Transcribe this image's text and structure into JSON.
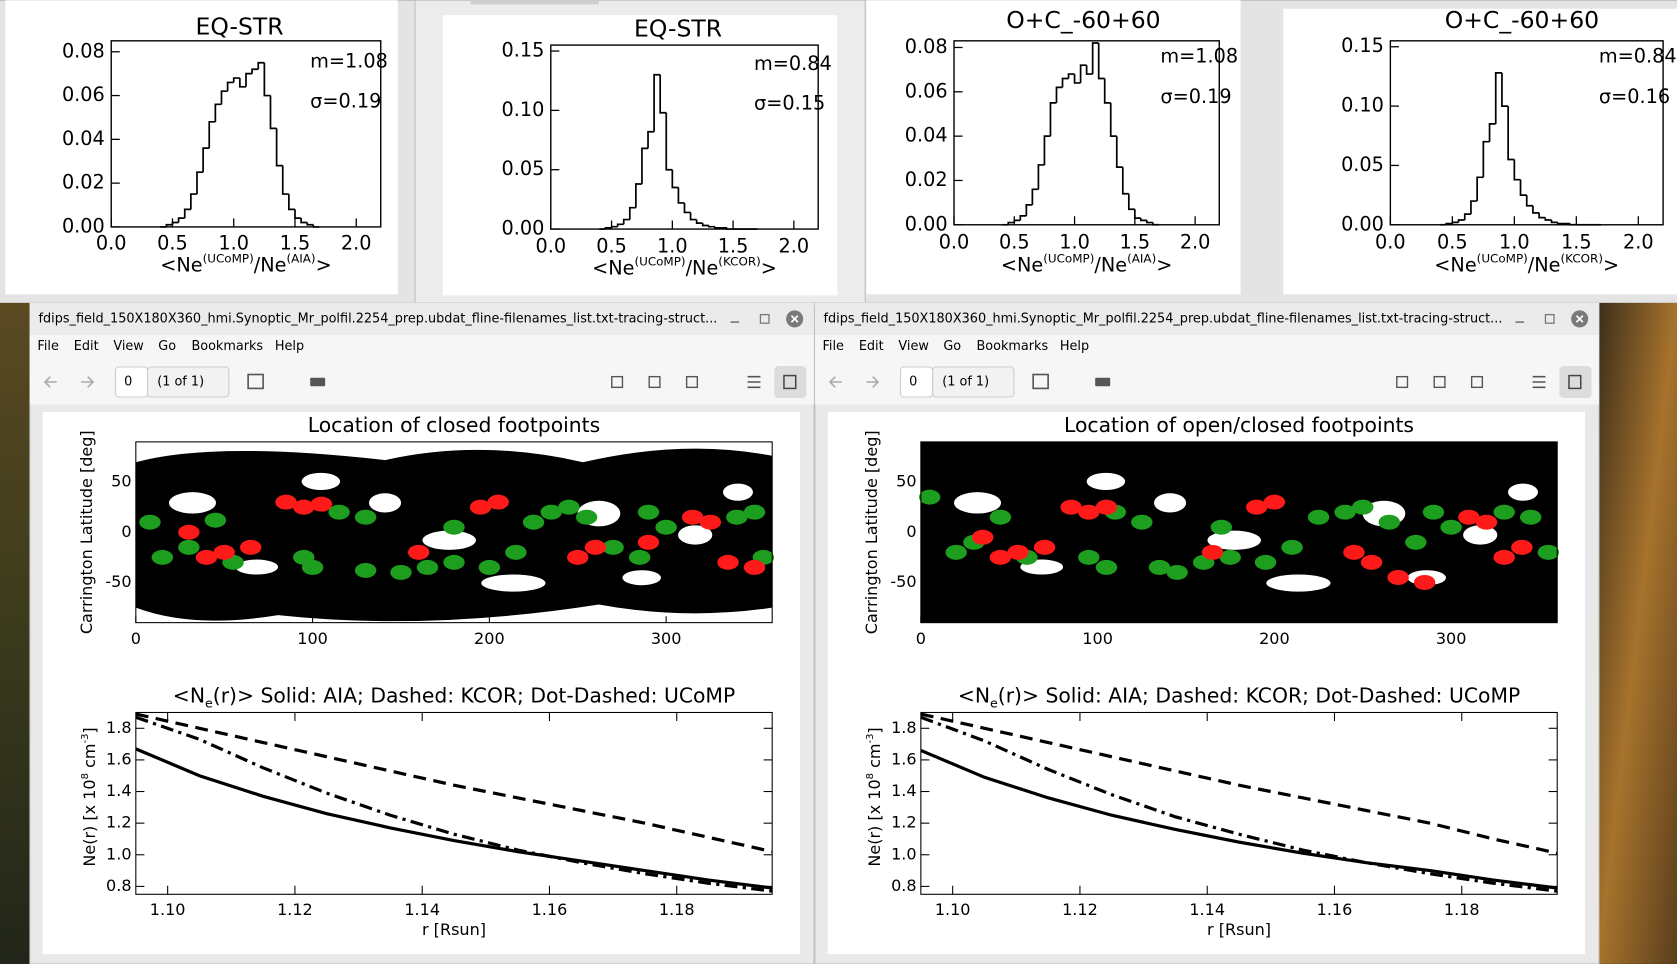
{
  "histograms": [
    {
      "title": "EQ-STR",
      "m_text": "m=1.08",
      "sigma_text": "σ=0.19",
      "xlabel": [
        {
          "text": "<Ne"
        },
        {
          "text": "(UCoMP)",
          "baseline": "super"
        },
        {
          "text": "/Ne"
        },
        {
          "text": "(AIA)",
          "baseline": "super"
        },
        {
          "text": ">"
        }
      ],
      "xlim": [
        0,
        2.2
      ],
      "xticks": [
        {
          "value": 0,
          "label": "0.0"
        },
        0.5,
        {
          "value": 1,
          "label": "1.0"
        },
        1.5,
        {
          "value": 2,
          "label": "2.0"
        }
      ],
      "ylim": [
        0,
        0.085
      ],
      "yticks": [
        {
          "value": 0,
          "label": "0.00"
        },
        {
          "value": 0.02,
          "label": "0.02"
        },
        {
          "value": 0.04,
          "label": "0.04"
        },
        {
          "value": 0.06,
          "label": "0.06"
        },
        {
          "value": 0.08,
          "label": "0.08"
        }
      ],
      "bins": [
        0.4,
        0.45,
        0.5,
        0.55,
        0.6,
        0.65,
        0.7,
        0.75,
        0.8,
        0.85,
        0.9,
        0.95,
        1.0,
        1.05,
        1.1,
        1.15,
        1.2,
        1.25,
        1.3,
        1.35,
        1.4,
        1.45,
        1.5,
        1.55,
        1.6,
        1.65,
        1.7
      ],
      "counts": [
        0,
        0.001,
        0.002,
        0.004,
        0.008,
        0.015,
        0.025,
        0.036,
        0.048,
        0.056,
        0.062,
        0.066,
        0.068,
        0.064,
        0.07,
        0.072,
        0.075,
        0.06,
        0.045,
        0.028,
        0.015,
        0.008,
        0.004,
        0.002,
        0.001,
        0
      ]
    },
    {
      "title": "EQ-STR",
      "m_text": "m=0.84",
      "sigma_text": "σ=0.15",
      "xlabel": [
        {
          "text": "<Ne"
        },
        {
          "text": "(UCoMP)",
          "baseline": "super"
        },
        {
          "text": "/Ne"
        },
        {
          "text": "(KCOR)",
          "baseline": "super"
        },
        {
          "text": ">"
        }
      ],
      "xlim": [
        0,
        2.2
      ],
      "xticks": [
        {
          "value": 0,
          "label": "0.0"
        },
        0.5,
        {
          "value": 1,
          "label": "1.0"
        },
        1.5,
        {
          "value": 2,
          "label": "2.0"
        }
      ],
      "ylim": [
        0,
        0.155
      ],
      "yticks": [
        {
          "value": 0,
          "label": "0.00"
        },
        0.05,
        {
          "value": 0.1,
          "label": "0.10"
        },
        0.15
      ],
      "bins": [
        0.4,
        0.45,
        0.5,
        0.55,
        0.6,
        0.65,
        0.7,
        0.75,
        0.8,
        0.85,
        0.9,
        0.95,
        1.0,
        1.05,
        1.1,
        1.15,
        1.2,
        1.25,
        1.3,
        1.35,
        1.4,
        1.45,
        1.5,
        1.55,
        1.6,
        1.65,
        1.7
      ],
      "counts": [
        0,
        0.001,
        0.002,
        0.004,
        0.008,
        0.018,
        0.038,
        0.068,
        0.082,
        0.13,
        0.098,
        0.05,
        0.035,
        0.022,
        0.014,
        0.008,
        0.005,
        0.003,
        0.002,
        0.001,
        0.001,
        0,
        0,
        0,
        0,
        0
      ]
    },
    {
      "title": "O+C_-60+60",
      "m_text": "m=1.08",
      "sigma_text": "σ=0.19",
      "xlabel": [
        {
          "text": "<Ne"
        },
        {
          "text": "(UCoMP)",
          "baseline": "super"
        },
        {
          "text": "/Ne"
        },
        {
          "text": "(AIA)",
          "baseline": "super"
        },
        {
          "text": ">"
        }
      ],
      "xlim": [
        0,
        2.2
      ],
      "xticks": [
        {
          "value": 0,
          "label": "0.0"
        },
        0.5,
        {
          "value": 1,
          "label": "1.0"
        },
        1.5,
        {
          "value": 2,
          "label": "2.0"
        }
      ],
      "ylim": [
        0,
        0.083
      ],
      "yticks": [
        {
          "value": 0,
          "label": "0.00"
        },
        {
          "value": 0.02,
          "label": "0.02"
        },
        {
          "value": 0.04,
          "label": "0.04"
        },
        {
          "value": 0.06,
          "label": "0.06"
        },
        {
          "value": 0.08,
          "label": "0.08"
        }
      ],
      "bins": [
        0.4,
        0.45,
        0.5,
        0.55,
        0.6,
        0.65,
        0.7,
        0.75,
        0.8,
        0.85,
        0.9,
        0.95,
        1.0,
        1.05,
        1.1,
        1.15,
        1.2,
        1.25,
        1.3,
        1.35,
        1.4,
        1.45,
        1.5,
        1.55,
        1.6,
        1.65,
        1.7
      ],
      "counts": [
        0,
        0.001,
        0.002,
        0.004,
        0.009,
        0.016,
        0.027,
        0.04,
        0.055,
        0.062,
        0.066,
        0.068,
        0.064,
        0.072,
        0.068,
        0.082,
        0.066,
        0.055,
        0.04,
        0.026,
        0.014,
        0.007,
        0.003,
        0.002,
        0.001,
        0
      ]
    },
    {
      "title": "O+C_-60+60",
      "m_text": "m=0.84",
      "sigma_text": "σ=0.16",
      "xlabel": [
        {
          "text": "<Ne"
        },
        {
          "text": "(UCoMP)",
          "baseline": "super"
        },
        {
          "text": "/Ne"
        },
        {
          "text": "(KCOR)",
          "baseline": "super"
        },
        {
          "text": ">"
        }
      ],
      "xlim": [
        0,
        2.2
      ],
      "xticks": [
        {
          "value": 0,
          "label": "0.0"
        },
        0.5,
        {
          "value": 1,
          "label": "1.0"
        },
        1.5,
        {
          "value": 2,
          "label": "2.0"
        }
      ],
      "ylim": [
        0,
        0.155
      ],
      "yticks": [
        {
          "value": 0,
          "label": "0.00"
        },
        0.05,
        {
          "value": 0.1,
          "label": "0.10"
        },
        0.15
      ],
      "bins": [
        0.4,
        0.45,
        0.5,
        0.55,
        0.6,
        0.65,
        0.7,
        0.75,
        0.8,
        0.85,
        0.9,
        0.95,
        1.0,
        1.05,
        1.1,
        1.15,
        1.2,
        1.25,
        1.3,
        1.35,
        1.4,
        1.45,
        1.5,
        1.55,
        1.6,
        1.65,
        1.7
      ],
      "counts": [
        0,
        0.001,
        0.002,
        0.004,
        0.009,
        0.02,
        0.04,
        0.07,
        0.085,
        0.128,
        0.1,
        0.055,
        0.038,
        0.025,
        0.016,
        0.01,
        0.006,
        0.004,
        0.002,
        0.001,
        0.001,
        0,
        0,
        0,
        0,
        0
      ]
    }
  ],
  "windows": [
    {
      "window_title": "fdips_field_150X180X360_hmi.Synoptic_Mr_polfil.2254_prep.ubdat_fline-filenames_list.txt-tracing-struct...",
      "menu": [
        "File",
        "Edit",
        "View",
        "Go",
        "Bookmarks",
        "Help"
      ],
      "page_number": "0",
      "page_count": "(1 of 1)",
      "map": {
        "title": "Location of closed footpoints",
        "ylabel": "Carrington Latitude [deg]",
        "coverage": "band",
        "xlim": [
          0,
          360
        ],
        "ylim": [
          -90,
          90
        ],
        "xticks": [
          0,
          100,
          200,
          300
        ],
        "yticks": [
          -50,
          0,
          50
        ],
        "series": [
          {
            "color": "#1e9e1e",
            "x": [
              8,
              15,
              30,
              45,
              55,
              95,
              115,
              130,
              150,
              165,
              180,
              200,
              215,
              225,
              235,
              245,
              255,
              270,
              285,
              290,
              300,
              340,
              350,
              355,
              180,
              100,
              130
            ],
            "y": [
              10,
              -25,
              -15,
              12,
              -30,
              -25,
              20,
              15,
              -40,
              -35,
              -30,
              -35,
              -20,
              10,
              20,
              25,
              15,
              -15,
              -25,
              20,
              5,
              15,
              20,
              -25,
              5,
              -35,
              -38
            ]
          },
          {
            "color": "#ff1a1a",
            "x": [
              30,
              40,
              50,
              65,
              85,
              95,
              105,
              160,
              195,
              205,
              250,
              260,
              290,
              315,
              325,
              335,
              350
            ],
            "y": [
              0,
              -25,
              -20,
              -15,
              30,
              25,
              28,
              -20,
              25,
              30,
              -25,
              -15,
              -10,
              15,
              10,
              -30,
              -35
            ]
          }
        ]
      },
      "profile": {
        "title": [
          {
            "text": "<N"
          },
          {
            "text": "e",
            "baseline": "sub"
          },
          {
            "text": "(r)>   Solid: AIA; Dashed: KCOR; Dot-Dashed: UCoMP"
          }
        ],
        "xlabel": "r [Rsun]",
        "ylabel": [
          {
            "text": "Ne(r) [x 10"
          },
          {
            "text": "8",
            "baseline": "super"
          },
          {
            "text": " cm"
          },
          {
            "text": "-3",
            "baseline": "super"
          },
          {
            "text": "]"
          }
        ],
        "xlim": [
          1.095,
          1.195
        ],
        "ylim": [
          0.75,
          1.9
        ],
        "xticks": [
          {
            "value": 1.1,
            "label": "1.10"
          },
          1.12,
          1.14,
          1.16,
          1.18
        ],
        "yticks": [
          0.8,
          {
            "value": 1,
            "label": "1.0"
          },
          1.2,
          1.4,
          1.6,
          1.8
        ],
        "x": [
          1.095,
          1.105,
          1.115,
          1.125,
          1.135,
          1.145,
          1.155,
          1.165,
          1.175,
          1.185,
          1.195
        ],
        "series": [
          {
            "linestyle": "solid",
            "color": "#000000",
            "values": [
              1.67,
              1.5,
              1.37,
              1.26,
              1.17,
              1.09,
              1.02,
              0.96,
              0.9,
              0.84,
              0.79
            ]
          },
          {
            "linestyle": "dashed",
            "color": "#000000",
            "values": [
              1.89,
              1.8,
              1.71,
              1.62,
              1.53,
              1.44,
              1.36,
              1.28,
              1.2,
              1.11,
              1.02
            ]
          },
          {
            "linestyle": "dash-dot",
            "color": "#000000",
            "values": [
              1.87,
              1.73,
              1.55,
              1.39,
              1.25,
              1.13,
              1.03,
              0.95,
              0.88,
              0.82,
              0.77
            ]
          }
        ]
      }
    },
    {
      "window_title": "fdips_field_150X180X360_hmi.Synoptic_Mr_polfil.2254_prep.ubdat_fline-filenames_list.txt-tracing-struct...",
      "menu": [
        "File",
        "Edit",
        "View",
        "Go",
        "Bookmarks",
        "Help"
      ],
      "page_number": "0",
      "page_count": "(1 of 1)",
      "map": {
        "title": "Location of open/closed footpoints",
        "ylabel": "Carrington Latitude [deg]",
        "coverage": "full",
        "xlim": [
          0,
          360
        ],
        "ylim": [
          -90,
          90
        ],
        "xticks": [
          0,
          100,
          200,
          300
        ],
        "yticks": [
          -50,
          0,
          50
        ],
        "series": [
          {
            "color": "#1e9e1e",
            "x": [
              5,
              20,
              30,
              45,
              60,
              95,
              110,
              125,
              145,
              160,
              175,
              195,
              210,
              225,
              240,
              250,
              265,
              280,
              290,
              300,
              330,
              345,
              355,
              170,
              105,
              135
            ],
            "y": [
              35,
              -20,
              -10,
              15,
              -25,
              -25,
              20,
              10,
              -40,
              -30,
              -25,
              -30,
              -15,
              15,
              20,
              25,
              10,
              -10,
              20,
              5,
              20,
              15,
              -20,
              5,
              -35,
              -35
            ]
          },
          {
            "color": "#ff1a1a",
            "x": [
              35,
              45,
              55,
              70,
              85,
              95,
              105,
              165,
              190,
              200,
              245,
              255,
              270,
              285,
              310,
              320,
              330,
              340
            ],
            "y": [
              -5,
              -25,
              -20,
              -15,
              25,
              20,
              25,
              -20,
              25,
              30,
              -20,
              -30,
              -45,
              -50,
              15,
              10,
              -25,
              -15
            ]
          }
        ]
      },
      "profile": {
        "title": [
          {
            "text": "<N"
          },
          {
            "text": "e",
            "baseline": "sub"
          },
          {
            "text": "(r)>   Solid: AIA; Dashed: KCOR; Dot-Dashed: UCoMP"
          }
        ],
        "xlabel": "r [Rsun]",
        "ylabel": [
          {
            "text": "Ne(r) [x 10"
          },
          {
            "text": "8",
            "baseline": "super"
          },
          {
            "text": " cm"
          },
          {
            "text": "-3",
            "baseline": "super"
          },
          {
            "text": "]"
          }
        ],
        "xlim": [
          1.095,
          1.195
        ],
        "ylim": [
          0.75,
          1.9
        ],
        "xticks": [
          {
            "value": 1.1,
            "label": "1.10"
          },
          1.12,
          1.14,
          1.16,
          1.18
        ],
        "yticks": [
          0.8,
          {
            "value": 1,
            "label": "1.0"
          },
          1.2,
          1.4,
          1.6,
          1.8
        ],
        "x": [
          1.095,
          1.105,
          1.115,
          1.125,
          1.135,
          1.145,
          1.155,
          1.165,
          1.175,
          1.185,
          1.195
        ],
        "series": [
          {
            "linestyle": "solid",
            "color": "#000000",
            "values": [
              1.66,
              1.49,
              1.36,
              1.25,
              1.16,
              1.08,
              1.01,
              0.95,
              0.9,
              0.84,
              0.79
            ]
          },
          {
            "linestyle": "dashed",
            "color": "#000000",
            "values": [
              1.89,
              1.8,
              1.71,
              1.62,
              1.53,
              1.44,
              1.36,
              1.28,
              1.2,
              1.1,
              1.01
            ]
          },
          {
            "linestyle": "dash-dot",
            "color": "#000000",
            "values": [
              1.87,
              1.72,
              1.54,
              1.38,
              1.24,
              1.13,
              1.03,
              0.95,
              0.88,
              0.82,
              0.77
            ]
          }
        ]
      }
    }
  ]
}
